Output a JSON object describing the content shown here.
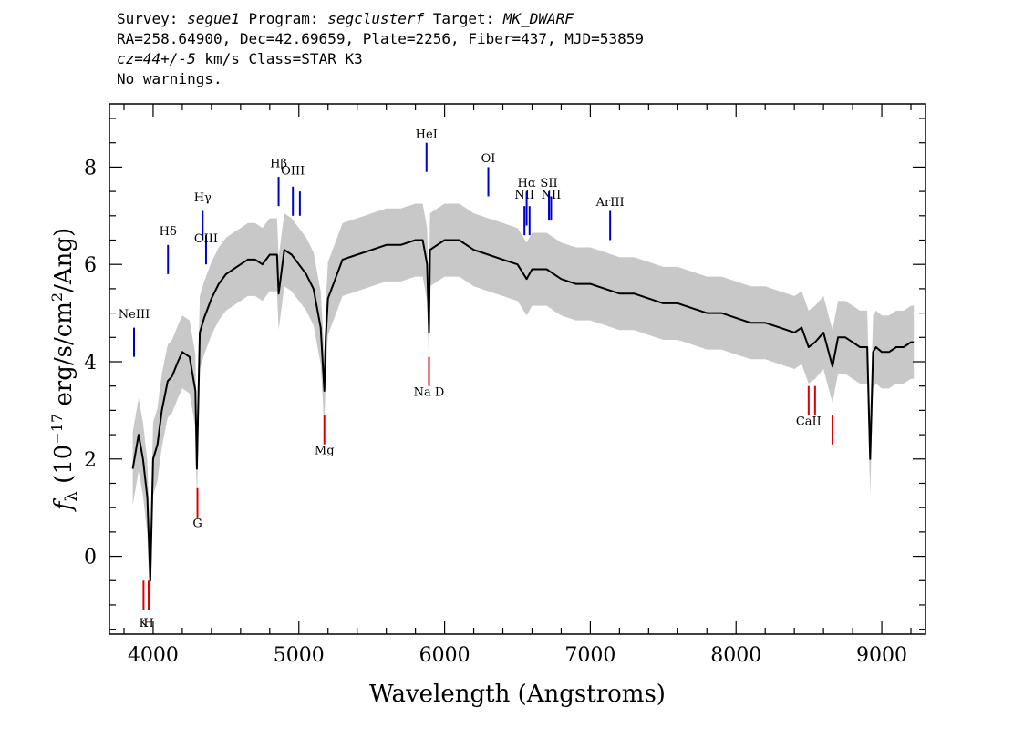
{
  "header": {
    "survey_label": "Survey: ",
    "survey": "segue1",
    "program_label": " Program: ",
    "program": "segclusterf",
    "target_label": " Target: ",
    "target": "MK_DWARF",
    "line2": "RA=258.64900, Dec=42.69659, Plate=2256, Fiber=437, MJD=53859",
    "cz": "cz=44+/-5",
    "line3_rest": " km/s Class=STAR K3",
    "line4": "No warnings."
  },
  "chart_data": {
    "type": "line",
    "title": "",
    "xlabel": "Wavelength (Angstroms)",
    "ylabel": "f_λ (10^-17 erg/s/cm^2/Ang)",
    "xlim": [
      3700,
      9300
    ],
    "ylim": [
      -1.6,
      9.3
    ],
    "x_ticks": [
      4000,
      5000,
      6000,
      7000,
      8000,
      9000
    ],
    "x_tick_labels": [
      "4000",
      "5000",
      "6000",
      "7000",
      "8000",
      "9000"
    ],
    "y_ticks": [
      0,
      2,
      4,
      6,
      8
    ],
    "y_tick_labels": [
      "0",
      "2",
      "4",
      "6",
      "8"
    ],
    "series": [
      {
        "role": "spectrum-flux",
        "color": "#000000",
        "x": [
          3860,
          3900,
          3930,
          3960,
          3980,
          4000,
          4030,
          4060,
          4080,
          4100,
          4130,
          4170,
          4200,
          4250,
          4290,
          4300,
          4320,
          4350,
          4400,
          4450,
          4500,
          4550,
          4600,
          4650,
          4700,
          4750,
          4800,
          4850,
          4861,
          4900,
          4950,
          5000,
          5050,
          5100,
          5150,
          5175,
          5185,
          5200,
          5250,
          5300,
          5400,
          5500,
          5600,
          5700,
          5800,
          5850,
          5880,
          5893,
          5900,
          5950,
          6000,
          6100,
          6200,
          6300,
          6400,
          6500,
          6563,
          6600,
          6700,
          6800,
          6900,
          7000,
          7100,
          7200,
          7300,
          7400,
          7500,
          7600,
          7700,
          7800,
          7900,
          8000,
          8100,
          8200,
          8300,
          8400,
          8450,
          8498,
          8542,
          8600,
          8662,
          8700,
          8750,
          8800,
          8850,
          8900,
          8920,
          8940,
          8960,
          9000,
          9050,
          9100,
          9150,
          9200,
          9220
        ],
        "y": [
          1.8,
          2.5,
          2.0,
          1.2,
          -0.5,
          2.0,
          2.3,
          3.0,
          3.3,
          3.6,
          3.7,
          4.0,
          4.2,
          4.1,
          3.4,
          1.8,
          4.6,
          4.9,
          5.3,
          5.6,
          5.8,
          5.9,
          6.0,
          6.1,
          6.1,
          6.0,
          6.2,
          6.2,
          5.4,
          6.3,
          6.2,
          6.0,
          5.8,
          5.5,
          4.7,
          3.4,
          4.5,
          5.3,
          5.7,
          6.1,
          6.2,
          6.3,
          6.4,
          6.4,
          6.5,
          6.5,
          6.0,
          4.6,
          6.3,
          6.4,
          6.5,
          6.5,
          6.3,
          6.2,
          6.1,
          6.0,
          5.7,
          5.9,
          5.9,
          5.7,
          5.6,
          5.6,
          5.5,
          5.4,
          5.4,
          5.3,
          5.2,
          5.2,
          5.1,
          5.0,
          5.0,
          4.9,
          4.8,
          4.8,
          4.7,
          4.6,
          4.7,
          4.3,
          4.4,
          4.6,
          3.9,
          4.5,
          4.5,
          4.4,
          4.3,
          4.3,
          2.0,
          4.2,
          4.3,
          4.2,
          4.2,
          4.3,
          4.3,
          4.4,
          4.4
        ]
      },
      {
        "role": "spectrum-noise",
        "color": "#c8c8c8",
        "x": [
          3860,
          3900,
          3930,
          3960,
          3980,
          4000,
          4030,
          4060,
          4080,
          4100,
          4130,
          4170,
          4200,
          4250,
          4290,
          4300,
          4320,
          4350,
          4400,
          4450,
          4500,
          4550,
          4600,
          4650,
          4700,
          4750,
          4800,
          4850,
          4861,
          4900,
          4950,
          5000,
          5050,
          5100,
          5150,
          5175,
          5185,
          5200,
          5250,
          5300,
          5400,
          5500,
          5600,
          5700,
          5800,
          5850,
          5880,
          5893,
          5900,
          5950,
          6000,
          6100,
          6200,
          6300,
          6400,
          6500,
          6563,
          6600,
          6700,
          6800,
          6900,
          7000,
          7100,
          7200,
          7300,
          7400,
          7500,
          7600,
          7700,
          7800,
          7900,
          8000,
          8100,
          8200,
          8300,
          8400,
          8450,
          8498,
          8542,
          8600,
          8662,
          8700,
          8750,
          8800,
          8850,
          8900,
          8920,
          8940,
          8960,
          9000,
          9050,
          9100,
          9150,
          9200,
          9220
        ],
        "y": [
          1.8,
          2.5,
          2.0,
          1.2,
          -0.5,
          2.0,
          2.3,
          3.0,
          3.3,
          3.6,
          3.7,
          4.0,
          4.2,
          4.1,
          3.4,
          1.8,
          4.6,
          4.9,
          5.3,
          5.6,
          5.8,
          5.9,
          6.0,
          6.1,
          6.1,
          6.0,
          6.2,
          6.2,
          5.4,
          6.3,
          6.2,
          6.0,
          5.8,
          5.5,
          4.7,
          3.4,
          4.5,
          5.3,
          5.7,
          6.1,
          6.2,
          6.3,
          6.4,
          6.4,
          6.5,
          6.5,
          6.0,
          4.6,
          6.3,
          6.4,
          6.5,
          6.5,
          6.3,
          6.2,
          6.1,
          6.0,
          5.7,
          5.9,
          5.9,
          5.7,
          5.6,
          5.6,
          5.5,
          5.4,
          5.4,
          5.3,
          5.2,
          5.2,
          5.1,
          5.0,
          5.0,
          4.9,
          4.8,
          4.8,
          4.7,
          4.6,
          4.7,
          4.3,
          4.4,
          4.6,
          3.9,
          4.5,
          4.5,
          4.4,
          4.3,
          4.3,
          2.0,
          4.2,
          4.3,
          4.2,
          4.2,
          4.3,
          4.3,
          4.4,
          4.4
        ],
        "half_width": 0.75
      }
    ],
    "emission_lines": [
      {
        "label": "NeIII",
        "wavelength": 3869,
        "y_top": 4.7,
        "y_bottom": 4.1,
        "label_y": 4.9
      },
      {
        "label": "Hδ",
        "wavelength": 4102,
        "y_top": 6.4,
        "y_bottom": 5.8,
        "label_y": 6.6
      },
      {
        "label": "Hγ",
        "wavelength": 4340,
        "y_top": 7.1,
        "y_bottom": 6.5,
        "label_y": 7.3
      },
      {
        "label": "OIII",
        "wavelength": 4363,
        "y_top": 6.6,
        "y_bottom": 6.0,
        "label_y": 6.45
      },
      {
        "label": "Hβ",
        "wavelength": 4861,
        "y_top": 7.8,
        "y_bottom": 7.2,
        "label_y": 8.0
      },
      {
        "label": "OIII",
        "wavelength": 4959,
        "y_top": 7.6,
        "y_bottom": 7.0,
        "label_y": 7.85
      },
      {
        "label": "",
        "wavelength": 5007,
        "y_top": 7.5,
        "y_bottom": 7.0,
        "label_y": 7.85
      },
      {
        "label": "HeI",
        "wavelength": 5876,
        "y_top": 8.5,
        "y_bottom": 7.9,
        "label_y": 8.6
      },
      {
        "label": "OI",
        "wavelength": 6300,
        "y_top": 8.0,
        "y_bottom": 7.4,
        "label_y": 8.1
      },
      {
        "label": "NII",
        "wavelength": 6548,
        "y_top": 7.2,
        "y_bottom": 6.6,
        "label_y": 7.35
      },
      {
        "label": "Hα",
        "wavelength": 6563,
        "y_top": 7.5,
        "y_bottom": 6.8,
        "label_y": 7.6
      },
      {
        "label": "",
        "wavelength": 6583,
        "y_top": 7.2,
        "y_bottom": 6.6,
        "label_y": 7.35
      },
      {
        "label": "SII",
        "wavelength": 6716,
        "y_top": 7.5,
        "y_bottom": 6.9,
        "label_y": 7.6
      },
      {
        "label": "NII",
        "wavelength": 6731,
        "y_top": 7.4,
        "y_bottom": 6.9,
        "label_y": 7.35
      },
      {
        "label": "ArIII",
        "wavelength": 7136,
        "y_top": 7.1,
        "y_bottom": 6.5,
        "label_y": 7.2
      }
    ],
    "absorption_lines": [
      {
        "label": "K",
        "wavelength": 3934,
        "y_top": -0.5,
        "y_bottom": -1.1,
        "label_y": -1.45
      },
      {
        "label": "H",
        "wavelength": 3969,
        "y_top": -0.5,
        "y_bottom": -1.1,
        "label_y": -1.45
      },
      {
        "label": "G",
        "wavelength": 4304,
        "y_top": 1.4,
        "y_bottom": 0.8,
        "label_y": 0.6
      },
      {
        "label": "Mg",
        "wavelength": 5175,
        "y_top": 2.9,
        "y_bottom": 2.3,
        "label_y": 2.1
      },
      {
        "label": "Na D",
        "wavelength": 5893,
        "y_top": 4.1,
        "y_bottom": 3.5,
        "label_y": 3.3
      },
      {
        "label": "CaII",
        "wavelength": 8498,
        "y_top": 3.5,
        "y_bottom": 2.9,
        "label_y": 2.7
      },
      {
        "label": "",
        "wavelength": 8542,
        "y_top": 3.5,
        "y_bottom": 2.9,
        "label_y": 2.7
      },
      {
        "label": "",
        "wavelength": 8662,
        "y_top": 2.9,
        "y_bottom": 2.3,
        "label_y": 2.7
      }
    ],
    "colors": {
      "emission": "#0000cc",
      "absorption": "#dd0000",
      "axes": "#000000"
    }
  }
}
